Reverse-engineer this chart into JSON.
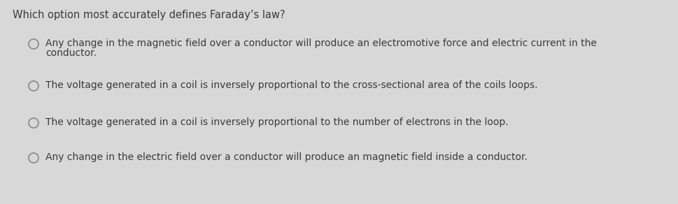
{
  "background_color": "#d8d8d8",
  "question": "Which option most accurately defines Faraday’s law?",
  "question_fontsize": 10.5,
  "question_color": "#3a3a3a",
  "options": [
    {
      "lines": [
        "Any change in the magnetic field over a conductor will produce an electromotive force and electric current in the",
        "conductor."
      ],
      "filled": false
    },
    {
      "lines": [
        "The voltage generated in a coil is inversely proportional to the cross-sectional area of the coils loops."
      ],
      "filled": false
    },
    {
      "lines": [
        "The voltage generated in a coil is inversely proportional to the number of electrons in the loop."
      ],
      "filled": false
    },
    {
      "lines": [
        "Any change in the electric field over a conductor will produce an magnetic field inside a conductor."
      ],
      "filled": false
    }
  ],
  "option_fontsize": 10.0,
  "option_color": "#3a3a3a",
  "circle_edgecolor": "#888888",
  "circle_facecolor": "#d8d8d8",
  "circle_linewidth": 1.2
}
